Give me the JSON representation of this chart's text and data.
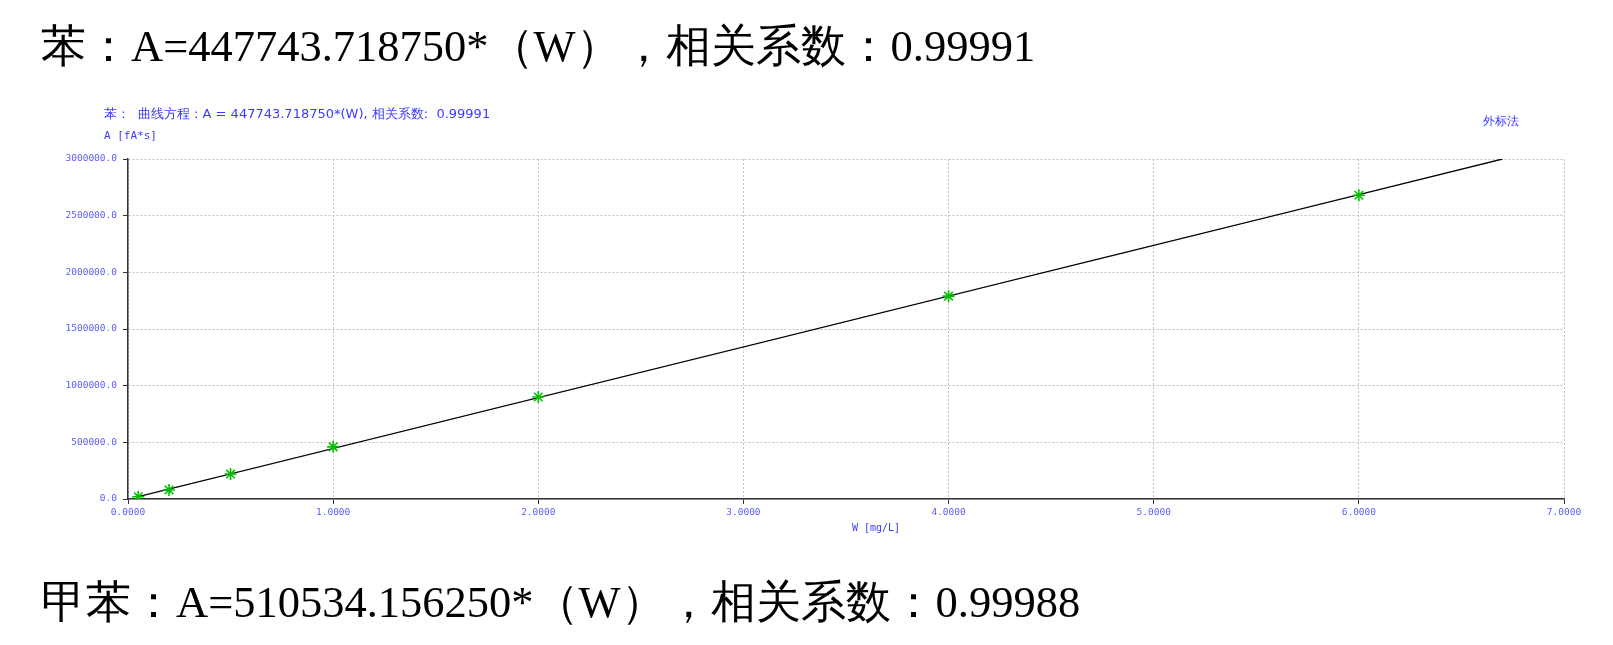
{
  "chart_data": {
    "type": "scatter",
    "title": "苯：A=447743.718750*（W），相关系数：0.99991",
    "subtitle": "苯 :   曲线方程 : A = 447743.718750*(W), 相关系数:  0.99991",
    "xlabel": "W [mg/L]",
    "ylabel": "A [fA*s]",
    "annotations": [
      "外标法",
      "甲苯：A=510534.156250*（W），相关系数：0.99988"
    ],
    "x": [
      0.05,
      0.2,
      0.5,
      1,
      2,
      4,
      6
    ],
    "series": [
      {
        "type": "scatter",
        "color": "#00c000",
        "values": [
          20000,
          80000,
          220000,
          460000,
          900000,
          1790000,
          2680000
        ],
        "marker": "cross"
      },
      {
        "type": "line",
        "color": "#000000",
        "x": [
          0.05,
          6.7
        ],
        "values": [
          20000,
          3000000
        ],
        "line_style": "solid",
        "marker": "none"
      }
    ],
    "xlim": [
      0,
      7
    ],
    "ylim": [
      0,
      3000000
    ],
    "xticks": [
      {
        "value": 0,
        "label": "0.0000"
      },
      {
        "value": 1,
        "label": "1.0000"
      },
      {
        "value": 2,
        "label": "2.0000"
      },
      {
        "value": 3,
        "label": "3.0000"
      },
      {
        "value": 4,
        "label": "4.0000"
      },
      {
        "value": 5,
        "label": "5.0000"
      },
      {
        "value": 6,
        "label": "6.0000"
      },
      {
        "value": 7,
        "label": "7.0000"
      }
    ],
    "yticks": [
      {
        "value": 0,
        "label": "0.0"
      },
      {
        "value": 500000,
        "label": "500000.0"
      },
      {
        "value": 1000000,
        "label": "1000000.0"
      },
      {
        "value": 1500000,
        "label": "1500000.0"
      },
      {
        "value": 2000000,
        "label": "2000000.0"
      },
      {
        "value": 2500000,
        "label": "2500000.0"
      },
      {
        "value": 3000000,
        "label": "3000000.0"
      }
    ],
    "grid": true,
    "legend": false
  }
}
